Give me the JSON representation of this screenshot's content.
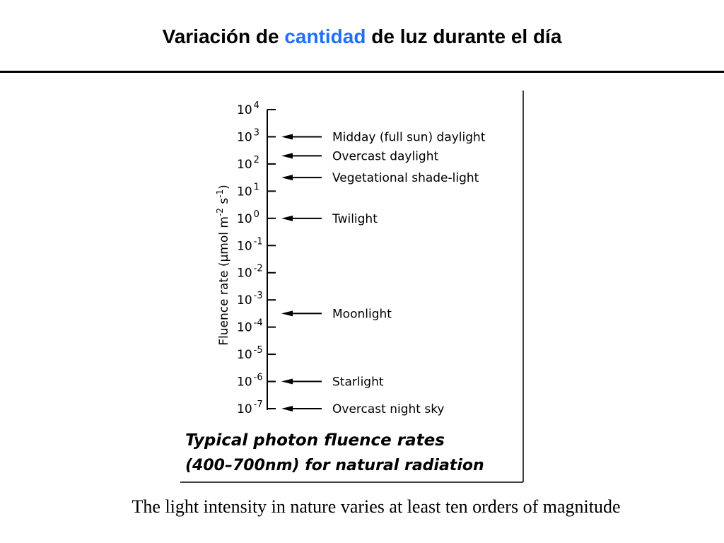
{
  "title": {
    "part1": "Variación de ",
    "highlight": "cantidad",
    "part2": " de luz durante el día",
    "highlight_color": "#1f6fff"
  },
  "figure": {
    "axis_label": "Fluence rate (μmol m⁻² s⁻¹)",
    "axis_label_parts": [
      "Fluence rate (",
      "μmol m",
      "-2",
      " s",
      "-1",
      ")"
    ],
    "caption_line1": "Typical photon fluence rates",
    "caption_line2": "(400–700nm) for natural radiation"
  },
  "chart_data": {
    "type": "scale",
    "scale": "log10",
    "ylim_exponent": [
      -7,
      4
    ],
    "ticks": [
      {
        "base": "10",
        "exp": "4"
      },
      {
        "base": "10",
        "exp": "3"
      },
      {
        "base": "10",
        "exp": "2"
      },
      {
        "base": "10",
        "exp": "1"
      },
      {
        "base": "10",
        "exp": "0"
      },
      {
        "base": "10",
        "exp": "-1"
      },
      {
        "base": "10",
        "exp": "-2"
      },
      {
        "base": "10",
        "exp": "-3"
      },
      {
        "base": "10",
        "exp": "-4"
      },
      {
        "base": "10",
        "exp": "-5"
      },
      {
        "base": "10",
        "exp": "-6"
      },
      {
        "base": "10",
        "exp": "-7"
      }
    ],
    "annotations": [
      {
        "label": "Midday (full sun) daylight",
        "exp": 3
      },
      {
        "label": "Overcast  daylight",
        "exp": 2.3
      },
      {
        "label": "Vegetational   shade-light",
        "exp": 1.5
      },
      {
        "label": "Twilight",
        "exp": 0
      },
      {
        "label": "Moonlight",
        "exp": -3.5
      },
      {
        "label": "Starlight",
        "exp": -6
      },
      {
        "label": "Overcast  night sky",
        "exp": -7
      }
    ]
  },
  "caption": "The light intensity in nature varies at least ten orders of magnitude"
}
